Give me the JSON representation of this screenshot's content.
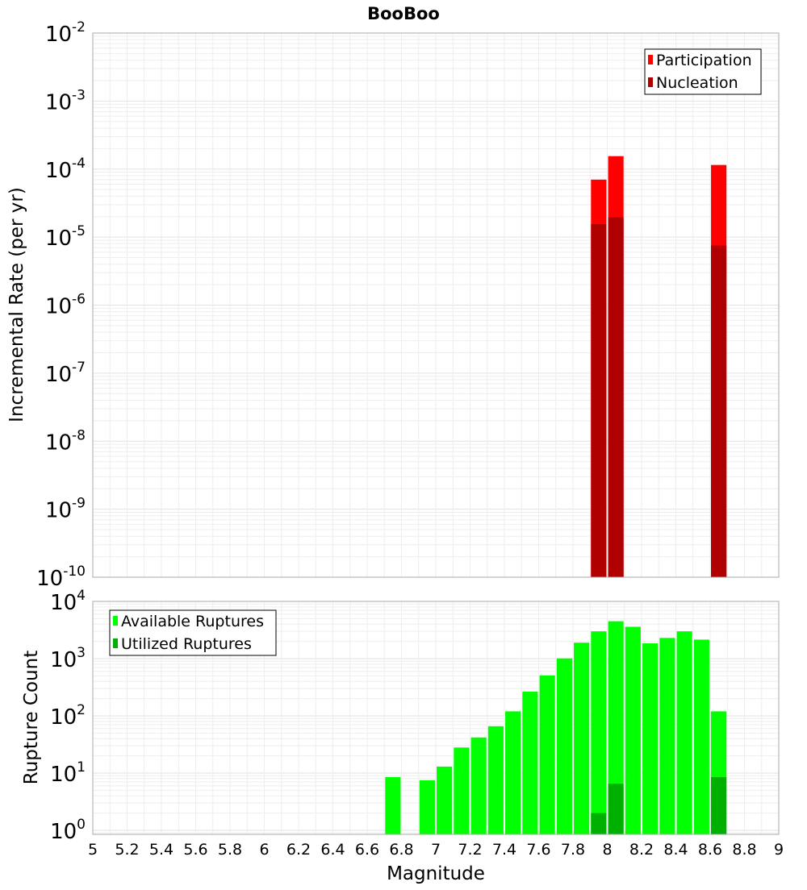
{
  "title": "BooBoo",
  "chart_data": [
    {
      "type": "bar",
      "scale": "log",
      "ylabel": "Incremental Rate (per yr)",
      "ylim": [
        1e-10,
        0.01
      ],
      "ytick_exponents": [
        -2,
        -3,
        -4,
        -5,
        -6,
        -7,
        -8,
        -9,
        -10
      ],
      "grid": true,
      "legend_position": "top-right",
      "series": [
        {
          "name": "Participation",
          "color": "#ff0000",
          "points": [
            {
              "x": 7.95,
              "y": 7e-05
            },
            {
              "x": 8.05,
              "y": 0.000155
            },
            {
              "x": 8.65,
              "y": 0.000115
            }
          ]
        },
        {
          "name": "Nucleation",
          "color": "#b00000",
          "points": [
            {
              "x": 7.95,
              "y": 1.55e-05
            },
            {
              "x": 8.05,
              "y": 1.95e-05
            },
            {
              "x": 8.65,
              "y": 7.5e-06
            }
          ]
        }
      ]
    },
    {
      "type": "bar",
      "scale": "log",
      "xlabel": "Magnitude",
      "ylabel": "Rupture Count",
      "xlim": [
        5,
        9
      ],
      "ylim": [
        0.85,
        10000
      ],
      "ytick_exponents": [
        0,
        1,
        2,
        3,
        4
      ],
      "xticks": [
        "5",
        "5.2",
        "5.4",
        "5.6",
        "5.8",
        "6",
        "6.2",
        "6.4",
        "6.6",
        "6.8",
        "7",
        "7.2",
        "7.4",
        "7.6",
        "7.8",
        "8",
        "8.2",
        "8.4",
        "8.6",
        "8.8",
        "9"
      ],
      "grid": true,
      "legend_position": "top-left",
      "series": [
        {
          "name": "Available Ruptures",
          "color": "#00ff00",
          "points": [
            {
              "x": 6.75,
              "y": 8.5
            },
            {
              "x": 6.95,
              "y": 7.5
            },
            {
              "x": 7.05,
              "y": 13
            },
            {
              "x": 7.15,
              "y": 28
            },
            {
              "x": 7.25,
              "y": 42
            },
            {
              "x": 7.35,
              "y": 66
            },
            {
              "x": 7.45,
              "y": 120
            },
            {
              "x": 7.55,
              "y": 265
            },
            {
              "x": 7.65,
              "y": 510
            },
            {
              "x": 7.75,
              "y": 1010
            },
            {
              "x": 7.85,
              "y": 1900
            },
            {
              "x": 7.95,
              "y": 3000
            },
            {
              "x": 8.05,
              "y": 4500
            },
            {
              "x": 8.15,
              "y": 3600
            },
            {
              "x": 8.25,
              "y": 1850
            },
            {
              "x": 8.35,
              "y": 2300
            },
            {
              "x": 8.45,
              "y": 3000
            },
            {
              "x": 8.55,
              "y": 2150
            },
            {
              "x": 8.65,
              "y": 120
            }
          ]
        },
        {
          "name": "Utilized Ruptures",
          "color": "#00b000",
          "points": [
            {
              "x": 7.95,
              "y": 2
            },
            {
              "x": 8.05,
              "y": 6.5
            },
            {
              "x": 8.65,
              "y": 8.5
            }
          ]
        }
      ]
    }
  ]
}
